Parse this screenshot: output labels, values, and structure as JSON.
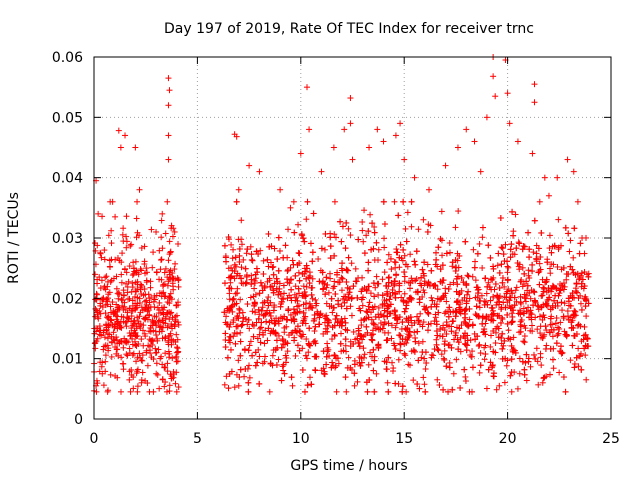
{
  "chart_data": {
    "type": "scatter",
    "title": "Day 197 of 2019, Rate Of TEC Index for receiver trnc",
    "xlabel": "GPS time / hours",
    "ylabel": "ROTI / TECUs",
    "xlim": [
      0,
      25
    ],
    "ylim": [
      0,
      0.06
    ],
    "xticks": [
      0,
      5,
      10,
      15,
      20,
      25
    ],
    "xtick_labels": [
      "0",
      "5",
      "10",
      "15",
      "20",
      "25"
    ],
    "yticks": [
      0,
      0.01,
      0.02,
      0.03,
      0.04,
      0.05,
      0.06
    ],
    "ytick_labels": [
      "0",
      "0.01",
      "0.02",
      "0.03",
      "0.04",
      "0.05",
      "0.06"
    ],
    "grid": true,
    "marker": "+",
    "color": "#ff0000",
    "segments": [
      {
        "start": 0.0,
        "end": 4.1,
        "baseline": 0.017,
        "spread": 0.006
      },
      {
        "start": 6.3,
        "end": 23.95,
        "baseline": 0.018,
        "spread": 0.006
      }
    ],
    "highlights": [
      {
        "x": 0.1,
        "y": 0.0395
      },
      {
        "x": 0.2,
        "y": 0.034
      },
      {
        "x": 0.5,
        "y": 0.028
      },
      {
        "x": 0.9,
        "y": 0.036
      },
      {
        "x": 1.2,
        "y": 0.0478
      },
      {
        "x": 1.3,
        "y": 0.045
      },
      {
        "x": 1.5,
        "y": 0.047
      },
      {
        "x": 2.0,
        "y": 0.045
      },
      {
        "x": 2.2,
        "y": 0.038
      },
      {
        "x": 3.0,
        "y": 0.031
      },
      {
        "x": 3.3,
        "y": 0.034
      },
      {
        "x": 3.6,
        "y": 0.0565
      },
      {
        "x": 3.65,
        "y": 0.0545
      },
      {
        "x": 3.6,
        "y": 0.052
      },
      {
        "x": 3.6,
        "y": 0.047
      },
      {
        "x": 3.6,
        "y": 0.043
      },
      {
        "x": 3.9,
        "y": 0.031
      },
      {
        "x": 6.8,
        "y": 0.0472
      },
      {
        "x": 6.9,
        "y": 0.0468
      },
      {
        "x": 7.0,
        "y": 0.038
      },
      {
        "x": 7.5,
        "y": 0.042
      },
      {
        "x": 8.0,
        "y": 0.041
      },
      {
        "x": 9.0,
        "y": 0.038
      },
      {
        "x": 9.5,
        "y": 0.035
      },
      {
        "x": 10.0,
        "y": 0.044
      },
      {
        "x": 10.3,
        "y": 0.055
      },
      {
        "x": 10.4,
        "y": 0.048
      },
      {
        "x": 11.0,
        "y": 0.041
      },
      {
        "x": 11.6,
        "y": 0.045
      },
      {
        "x": 12.1,
        "y": 0.048
      },
      {
        "x": 12.4,
        "y": 0.0532
      },
      {
        "x": 12.4,
        "y": 0.049
      },
      {
        "x": 12.5,
        "y": 0.043
      },
      {
        "x": 13.3,
        "y": 0.045
      },
      {
        "x": 13.7,
        "y": 0.048
      },
      {
        "x": 14.0,
        "y": 0.046
      },
      {
        "x": 14.6,
        "y": 0.047
      },
      {
        "x": 14.8,
        "y": 0.049
      },
      {
        "x": 15.0,
        "y": 0.043
      },
      {
        "x": 15.5,
        "y": 0.04
      },
      {
        "x": 16.2,
        "y": 0.038
      },
      {
        "x": 17.0,
        "y": 0.042
      },
      {
        "x": 17.6,
        "y": 0.045
      },
      {
        "x": 18.0,
        "y": 0.048
      },
      {
        "x": 18.4,
        "y": 0.046
      },
      {
        "x": 18.7,
        "y": 0.041
      },
      {
        "x": 19.0,
        "y": 0.05
      },
      {
        "x": 19.3,
        "y": 0.06
      },
      {
        "x": 19.3,
        "y": 0.0568
      },
      {
        "x": 19.4,
        "y": 0.0535
      },
      {
        "x": 19.9,
        "y": 0.0595
      },
      {
        "x": 20.0,
        "y": 0.054
      },
      {
        "x": 20.1,
        "y": 0.049
      },
      {
        "x": 20.5,
        "y": 0.046
      },
      {
        "x": 21.3,
        "y": 0.0555
      },
      {
        "x": 21.3,
        "y": 0.0525
      },
      {
        "x": 21.2,
        "y": 0.044
      },
      {
        "x": 21.8,
        "y": 0.04
      },
      {
        "x": 22.0,
        "y": 0.037
      },
      {
        "x": 22.4,
        "y": 0.04
      },
      {
        "x": 22.9,
        "y": 0.043
      },
      {
        "x": 23.2,
        "y": 0.041
      },
      {
        "x": 23.4,
        "y": 0.036
      },
      {
        "x": 23.6,
        "y": 0.03
      },
      {
        "x": 0.1,
        "y": 0.0055
      },
      {
        "x": 0.4,
        "y": 0.0075
      },
      {
        "x": 2.1,
        "y": 0.0045
      },
      {
        "x": 2.3,
        "y": 0.006
      },
      {
        "x": 3.4,
        "y": 0.0085
      },
      {
        "x": 7.0,
        "y": 0.0055
      },
      {
        "x": 8.5,
        "y": 0.0045
      },
      {
        "x": 9.6,
        "y": 0.0055
      },
      {
        "x": 12.2,
        "y": 0.0045
      },
      {
        "x": 12.6,
        "y": 0.0055
      },
      {
        "x": 14.2,
        "y": 0.006
      },
      {
        "x": 16.6,
        "y": 0.0065
      },
      {
        "x": 17.4,
        "y": 0.0075
      },
      {
        "x": 19.6,
        "y": 0.0055
      },
      {
        "x": 20.2,
        "y": 0.0045
      },
      {
        "x": 20.5,
        "y": 0.005
      },
      {
        "x": 21.7,
        "y": 0.006
      },
      {
        "x": 23.8,
        "y": 0.0065
      }
    ]
  }
}
